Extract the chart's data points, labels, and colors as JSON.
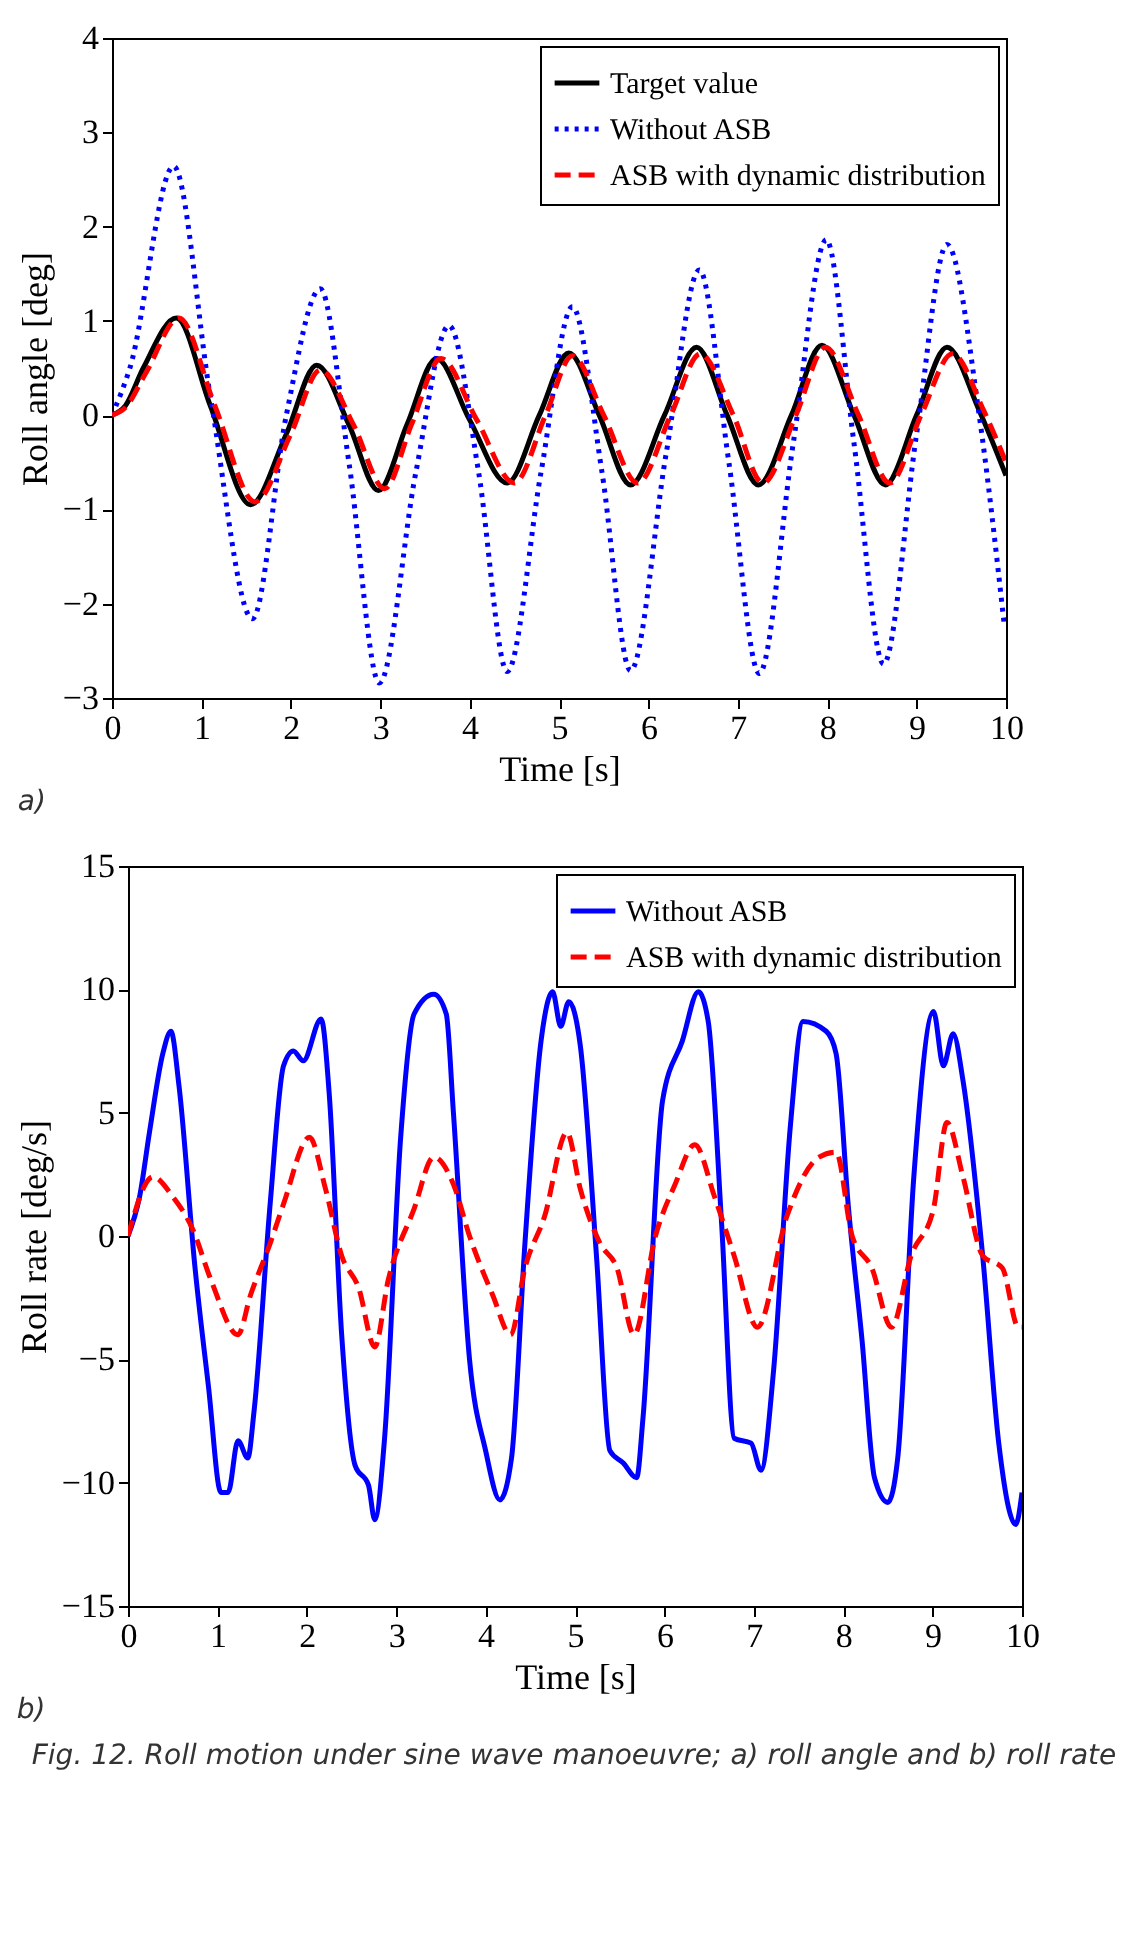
{
  "chart_data": [
    {
      "type": "line",
      "xlabel": "Time [s]",
      "ylabel": "Roll angle [deg]",
      "xlim": [
        0,
        10
      ],
      "ylim": [
        -3,
        4
      ],
      "xticks": [
        0,
        1,
        2,
        3,
        4,
        5,
        6,
        7,
        8,
        9,
        10
      ],
      "yticks": [
        -3,
        -2,
        -1,
        0,
        1,
        2,
        3,
        4
      ],
      "legend": "top right",
      "grid": false,
      "annotations": [
        "a)"
      ],
      "series": [
        {
          "name": "Target value",
          "color": "#000000",
          "line_style": "solid",
          "x": [
            0,
            0.15,
            0.35,
            0.72,
            1.1,
            1.55,
            1.95,
            2.29,
            2.65,
            2.98,
            3.3,
            3.63,
            4.0,
            4.42,
            4.78,
            5.11,
            5.45,
            5.8,
            6.18,
            6.54,
            6.88,
            7.23,
            7.6,
            7.94,
            8.3,
            8.65,
            9.0,
            9.34,
            9.7,
            10
          ],
          "values": [
            0,
            0.1,
            0.5,
            1.03,
            0.1,
            -0.95,
            -0.2,
            0.53,
            -0.1,
            -0.8,
            -0.1,
            0.6,
            -0.05,
            -0.72,
            0,
            0.66,
            0,
            -0.74,
            0,
            0.72,
            0,
            -0.74,
            0,
            0.74,
            0,
            -0.74,
            0,
            0.72,
            0.05,
            -0.64
          ]
        },
        {
          "name": "Without ASB",
          "color": "#0000ff",
          "line_style": "dotted",
          "x": [
            0,
            0.2,
            0.69,
            1.1,
            1.57,
            1.95,
            2.33,
            2.65,
            2.99,
            3.4,
            3.77,
            4.1,
            4.42,
            4.8,
            5.15,
            5.48,
            5.8,
            6.2,
            6.57,
            6.9,
            7.24,
            7.62,
            7.99,
            8.3,
            8.63,
            9.0,
            9.34,
            9.7,
            9.98
          ],
          "values": [
            0,
            0.5,
            2.64,
            0.2,
            -2.16,
            0,
            1.34,
            -0.5,
            -2.84,
            -0.6,
            0.95,
            -0.6,
            -2.72,
            -0.6,
            1.15,
            -0.6,
            -2.71,
            -0.4,
            1.54,
            -0.5,
            -2.74,
            -0.3,
            1.86,
            -0.3,
            -2.64,
            -0.2,
            1.81,
            0,
            -2.22
          ]
        },
        {
          "name": "ASB with dynamic distribution",
          "color": "#ff0000",
          "line_style": "dashed",
          "x": [
            0,
            0.15,
            0.38,
            0.75,
            1.15,
            1.6,
            2.0,
            2.33,
            2.7,
            3.05,
            3.35,
            3.68,
            4.08,
            4.5,
            4.85,
            5.15,
            5.5,
            5.88,
            6.25,
            6.58,
            6.95,
            7.28,
            7.65,
            7.98,
            8.35,
            8.7,
            9.05,
            9.4,
            9.75,
            10
          ],
          "values": [
            0,
            0.08,
            0.45,
            1.03,
            0.1,
            -0.92,
            -0.2,
            0.48,
            -0.1,
            -0.78,
            -0.1,
            0.6,
            -0.05,
            -0.72,
            0,
            0.63,
            0,
            -0.72,
            0,
            0.65,
            0,
            -0.72,
            0,
            0.72,
            0,
            -0.72,
            0,
            0.65,
            0.05,
            -0.5
          ]
        }
      ]
    },
    {
      "type": "line",
      "xlabel": "Time [s]",
      "ylabel": "Roll rate [deg/s]",
      "xlim": [
        0,
        10
      ],
      "ylim": [
        -15,
        15
      ],
      "xticks": [
        0,
        1,
        2,
        3,
        4,
        5,
        6,
        7,
        8,
        9,
        10
      ],
      "yticks": [
        -15,
        -10,
        -5,
        0,
        5,
        10,
        15
      ],
      "legend": "top right",
      "grid": false,
      "annotations": [
        "b)",
        "Fig. 12.  Roll motion under sine wave manoeuvre; a) roll angle and b) roll rate"
      ],
      "series": [
        {
          "name": "Without ASB",
          "color": "#0000ff",
          "line_style": "solid",
          "x": [
            0,
            0.13,
            0.24,
            0.39,
            0.48,
            0.57,
            0.75,
            0.9,
            1.04,
            1.12,
            1.23,
            1.34,
            1.41,
            1.59,
            1.74,
            1.85,
            1.96,
            2.16,
            2.25,
            2.39,
            2.54,
            2.69,
            2.76,
            2.87,
            3.05,
            3.2,
            3.42,
            3.56,
            3.64,
            3.82,
            4.0,
            4.16,
            4.29,
            4.44,
            4.62,
            4.75,
            4.84,
            4.93,
            5.06,
            5.24,
            5.39,
            5.54,
            5.69,
            5.76,
            5.98,
            6.2,
            6.38,
            6.49,
            6.64,
            6.78,
            6.97,
            7.08,
            7.22,
            7.41,
            7.55,
            7.81,
            7.92,
            8.06,
            8.21,
            8.35,
            8.5,
            8.61,
            8.79,
            9.01,
            9.12,
            9.23,
            9.34,
            9.56,
            9.74,
            9.93,
            10
          ],
          "values": [
            0,
            1.6,
            4.2,
            7.4,
            8.3,
            6.1,
            -1.3,
            -6.1,
            -10.4,
            -10.4,
            -8.3,
            -9,
            -7.1,
            1.3,
            6.9,
            7.5,
            7.1,
            8.8,
            5.8,
            -4,
            -9.3,
            -10.1,
            -11.5,
            -8.2,
            4,
            9,
            9.8,
            9,
            5,
            -5,
            -8.7,
            -10.7,
            -9,
            -0.3,
            7.9,
            9.9,
            8.5,
            9.5,
            7.7,
            -0.8,
            -8.7,
            -9.2,
            -9.8,
            -7.4,
            5.5,
            7.9,
            9.9,
            8.7,
            0.5,
            -8.2,
            -8.4,
            -9.5,
            -5.5,
            4.5,
            8.7,
            8.3,
            7.4,
            1.1,
            -4.2,
            -9.8,
            -10.8,
            -9,
            2.4,
            9.1,
            6.9,
            8.2,
            6.3,
            -0.8,
            -8.4,
            -11.7,
            -10.4
          ]
        },
        {
          "name": "ASB with dynamic distribution",
          "color": "#ff0000",
          "line_style": "dashed",
          "x": [
            0,
            0.28,
            0.5,
            0.72,
            0.93,
            1.23,
            1.37,
            1.59,
            1.74,
            2.03,
            2.21,
            2.39,
            2.58,
            2.76,
            2.91,
            3.2,
            3.42,
            3.64,
            3.82,
            4.08,
            4.28,
            4.44,
            4.66,
            4.91,
            5.06,
            5.28,
            5.47,
            5.66,
            5.9,
            6.12,
            6.34,
            6.56,
            6.78,
            7.04,
            7.37,
            7.73,
            7.92,
            8.1,
            8.32,
            8.54,
            8.76,
            9.01,
            9.16,
            9.34,
            9.56,
            9.78,
            9.96,
            10
          ],
          "values": [
            0,
            2.4,
            1.6,
            0.3,
            -1.8,
            -4,
            -2.4,
            -0.3,
            1.3,
            4,
            1.9,
            -0.8,
            -2.1,
            -4.5,
            -1.8,
            1.1,
            3.2,
            2.1,
            0,
            -2.4,
            -4,
            -1.3,
            0.8,
            4.2,
            1.9,
            -0.3,
            -1.3,
            -4,
            0,
            2.1,
            3.7,
            1.6,
            -0.8,
            -3.7,
            0.8,
            3.2,
            3.4,
            0,
            -1.3,
            -3.7,
            -0.8,
            1.1,
            4.6,
            2.4,
            -0.8,
            -1.3,
            -3.7,
            -3.7
          ]
        }
      ]
    }
  ]
}
